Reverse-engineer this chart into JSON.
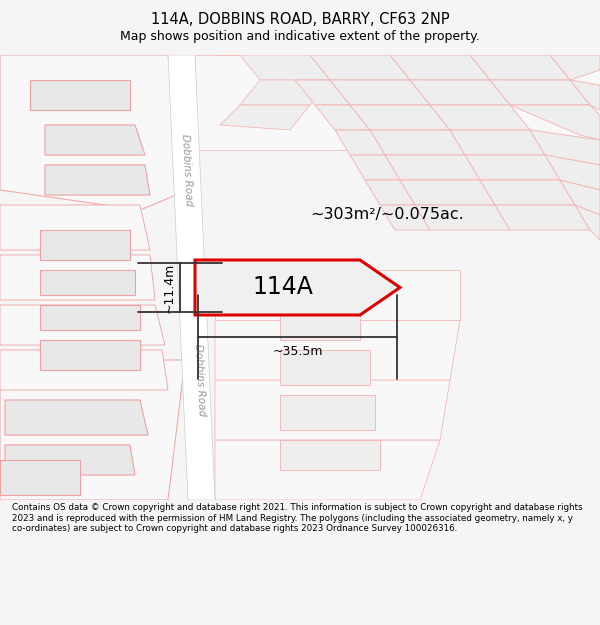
{
  "title_line1": "114A, DOBBINS ROAD, BARRY, CF63 2NP",
  "title_line2": "Map shows position and indicative extent of the property.",
  "footer_text": "Contains OS data © Crown copyright and database right 2021. This information is subject to Crown copyright and database rights 2023 and is reproduced with the permission of HM Land Registry. The polygons (including the associated geometry, namely x, y co-ordinates) are subject to Crown copyright and database rights 2023 Ordnance Survey 100026316.",
  "area_label": "~303m²/~0.075ac.",
  "property_label": "114A",
  "dim_width": "~35.5m",
  "dim_height": "~11.4m",
  "road_label_top": "Dobbins Road",
  "road_label_bottom": "Dobbins Road",
  "bg_color": "#f5f5f5",
  "map_bg": "#ffffff",
  "prop_fill": "#f0f0f0",
  "prop_edge": "#dd0000",
  "bldg_fill": "#e8e8e8",
  "bldg_edge": "#f0a0a0",
  "light_fill": "#eeeeee",
  "light_edge": "#f5b8b8"
}
